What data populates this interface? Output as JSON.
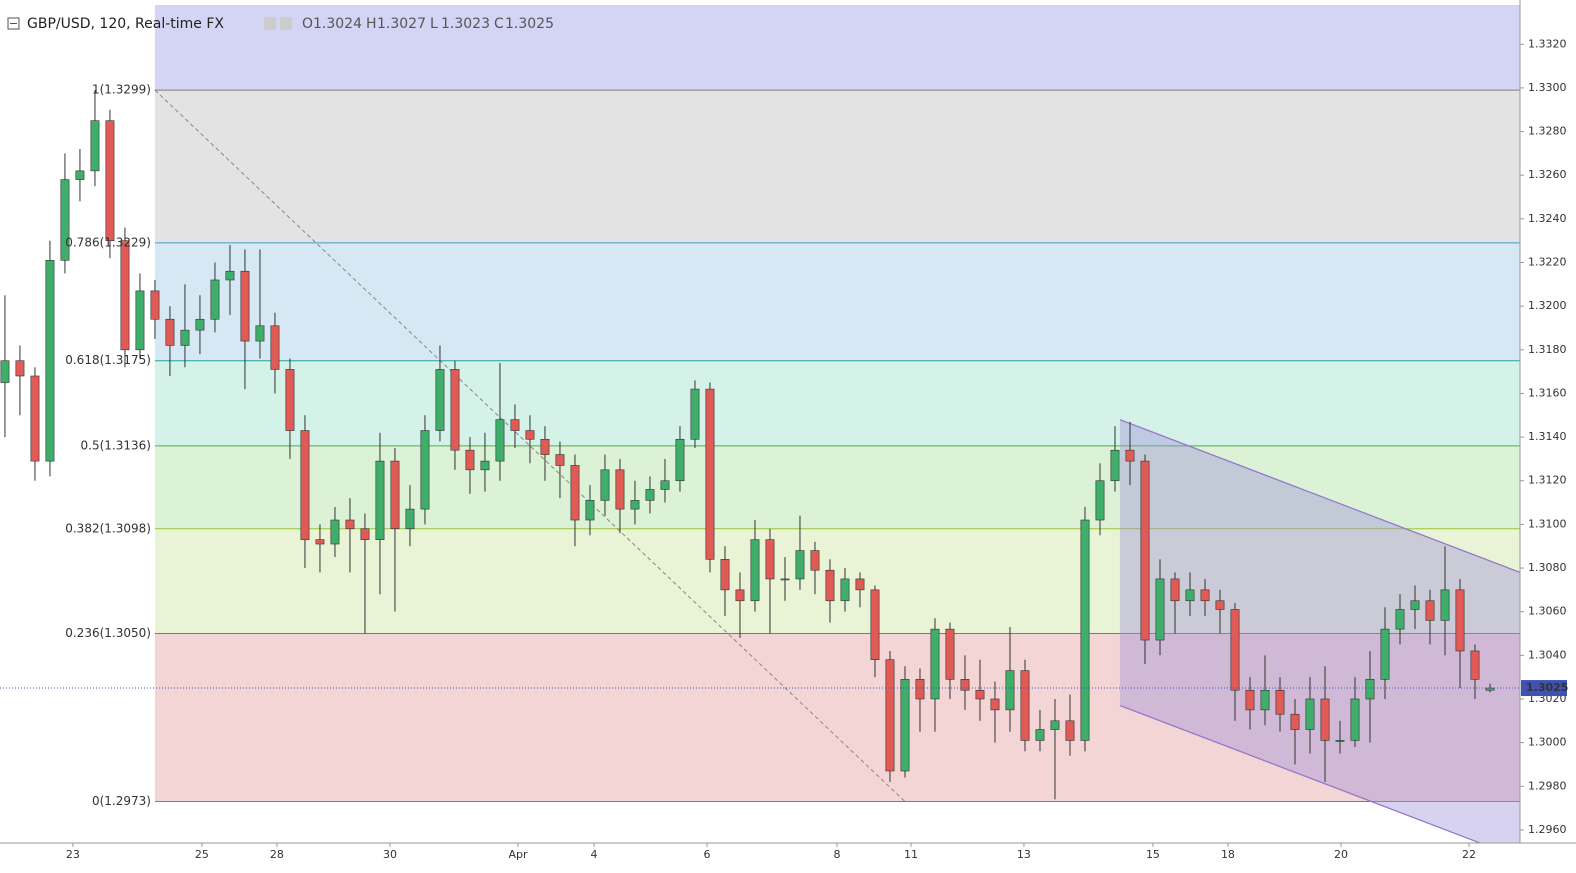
{
  "chart_data": {
    "type": "candlestick",
    "symbol": "GBP/USD, 120, Real-time FX",
    "ohlc_labels": [
      "O",
      "H",
      "L",
      "C"
    ],
    "x": [
      0,
      1,
      2,
      3,
      4,
      5,
      6,
      7,
      8,
      9,
      10,
      11,
      12,
      13,
      14,
      15,
      16,
      17,
      18,
      19,
      20,
      21,
      22,
      23,
      24,
      25,
      26,
      27,
      28,
      29,
      30,
      31,
      32,
      33,
      34,
      35,
      36,
      37,
      38,
      39,
      40,
      41,
      42,
      43,
      44,
      45,
      46,
      47,
      48,
      49,
      50,
      51,
      52,
      53,
      54,
      55,
      56,
      57,
      58,
      59,
      60,
      61,
      62,
      63,
      64,
      65,
      66,
      67,
      68,
      69,
      70,
      71,
      72,
      73,
      74,
      75,
      76,
      77,
      78,
      79,
      80,
      81,
      82,
      83,
      84,
      85,
      86,
      87,
      88,
      89,
      90,
      91,
      92,
      93,
      94,
      95,
      96,
      97,
      98,
      99
    ],
    "open": [
      1.3165,
      1.3175,
      1.3168,
      1.3129,
      1.3221,
      1.3258,
      1.3262,
      1.3285,
      1.323,
      1.318,
      1.3207,
      1.3194,
      1.3182,
      1.3189,
      1.3194,
      1.3212,
      1.3216,
      1.3184,
      1.3191,
      1.3171,
      1.3143,
      1.3093,
      1.3091,
      1.3102,
      1.3098,
      1.3093,
      1.3129,
      1.3098,
      1.3107,
      1.3143,
      1.3171,
      1.3134,
      1.3125,
      1.3129,
      1.3148,
      1.3143,
      1.3139,
      1.3132,
      1.3127,
      1.3102,
      1.3111,
      1.3125,
      1.3107,
      1.3111,
      1.3116,
      1.312,
      1.3139,
      1.3162,
      1.3084,
      1.307,
      1.3065,
      1.3093,
      1.3075,
      1.3075,
      1.3088,
      1.3079,
      1.3065,
      1.3075,
      1.307,
      1.3038,
      1.2987,
      1.3029,
      1.302,
      1.3052,
      1.3029,
      1.3024,
      1.302,
      1.3015,
      1.3033,
      1.3001,
      1.3006,
      1.301,
      1.3001,
      1.3102,
      1.312,
      1.3134,
      1.3129,
      1.3047,
      1.3075,
      1.3065,
      1.307,
      1.3065,
      1.3061,
      1.3024,
      1.3015,
      1.3024,
      1.3013,
      1.3006,
      1.302,
      1.3001,
      1.3001,
      1.302,
      1.3029,
      1.3052,
      1.3061,
      1.3065,
      1.3056,
      1.307,
      1.3042,
      1.3024
    ],
    "high": [
      1.3205,
      1.3182,
      1.3172,
      1.323,
      1.327,
      1.3272,
      1.3299,
      1.329,
      1.3236,
      1.3215,
      1.3212,
      1.32,
      1.321,
      1.3205,
      1.322,
      1.3228,
      1.3226,
      1.3226,
      1.3197,
      1.3176,
      1.315,
      1.31,
      1.3108,
      1.3112,
      1.3105,
      1.3142,
      1.3135,
      1.3118,
      1.315,
      1.3182,
      1.3175,
      1.314,
      1.3142,
      1.3174,
      1.3155,
      1.315,
      1.3145,
      1.3138,
      1.3132,
      1.3118,
      1.3132,
      1.313,
      1.312,
      1.3122,
      1.313,
      1.3145,
      1.3166,
      1.3165,
      1.309,
      1.3078,
      1.3102,
      1.3098,
      1.3085,
      1.3104,
      1.3092,
      1.3084,
      1.308,
      1.3078,
      1.3072,
      1.3042,
      1.3035,
      1.3034,
      1.3057,
      1.3055,
      1.304,
      1.3038,
      1.3028,
      1.3053,
      1.3038,
      1.3015,
      1.302,
      1.3022,
      1.3108,
      1.3128,
      1.3145,
      1.3147,
      1.3132,
      1.3084,
      1.3078,
      1.3078,
      1.3075,
      1.307,
      1.3064,
      1.303,
      1.304,
      1.303,
      1.302,
      1.303,
      1.3035,
      1.301,
      1.303,
      1.3042,
      1.3062,
      1.3068,
      1.3072,
      1.307,
      1.309,
      1.3075,
      1.3045,
      1.3027
    ],
    "low": [
      1.314,
      1.315,
      1.312,
      1.3122,
      1.3215,
      1.3248,
      1.3255,
      1.3222,
      1.3172,
      1.3176,
      1.3185,
      1.3168,
      1.3172,
      1.3178,
      1.3188,
      1.3196,
      1.3162,
      1.3176,
      1.316,
      1.313,
      1.308,
      1.3078,
      1.3085,
      1.3078,
      1.305,
      1.3068,
      1.306,
      1.309,
      1.31,
      1.3138,
      1.3125,
      1.3114,
      1.3115,
      1.312,
      1.3135,
      1.3128,
      1.312,
      1.3112,
      1.309,
      1.3095,
      1.3104,
      1.3096,
      1.31,
      1.3105,
      1.311,
      1.3115,
      1.3135,
      1.3078,
      1.3058,
      1.3048,
      1.306,
      1.305,
      1.3065,
      1.307,
      1.3068,
      1.3055,
      1.306,
      1.3062,
      1.303,
      1.2982,
      1.2984,
      1.3005,
      1.3005,
      1.302,
      1.3015,
      1.301,
      1.3,
      1.3005,
      1.2996,
      1.2996,
      1.2974,
      1.2994,
      1.2996,
      1.3095,
      1.3115,
      1.3118,
      1.3036,
      1.304,
      1.305,
      1.3058,
      1.3058,
      1.305,
      1.301,
      1.3006,
      1.3008,
      1.3005,
      1.299,
      1.2995,
      1.2982,
      1.2995,
      1.2998,
      1.3,
      1.302,
      1.3045,
      1.3052,
      1.3045,
      1.304,
      1.3025,
      1.302,
      1.3023
    ],
    "close": [
      1.3175,
      1.3168,
      1.3129,
      1.3221,
      1.3258,
      1.3262,
      1.3285,
      1.323,
      1.318,
      1.3207,
      1.3194,
      1.3182,
      1.3189,
      1.3194,
      1.3212,
      1.3216,
      1.3184,
      1.3191,
      1.3171,
      1.3143,
      1.3093,
      1.3091,
      1.3102,
      1.3098,
      1.3093,
      1.3129,
      1.3098,
      1.3107,
      1.3143,
      1.3171,
      1.3134,
      1.3125,
      1.3129,
      1.3148,
      1.3143,
      1.3139,
      1.3132,
      1.3127,
      1.3102,
      1.3111,
      1.3125,
      1.3107,
      1.3111,
      1.3116,
      1.312,
      1.3139,
      1.3162,
      1.3084,
      1.307,
      1.3065,
      1.3093,
      1.3075,
      1.3075,
      1.3088,
      1.3079,
      1.3065,
      1.3075,
      1.307,
      1.3038,
      1.2987,
      1.3029,
      1.302,
      1.3052,
      1.3029,
      1.3024,
      1.302,
      1.3015,
      1.3033,
      1.3001,
      1.3006,
      1.301,
      1.3001,
      1.3102,
      1.312,
      1.3134,
      1.3129,
      1.3047,
      1.3075,
      1.3065,
      1.307,
      1.3065,
      1.3061,
      1.3024,
      1.3015,
      1.3024,
      1.3013,
      1.3006,
      1.302,
      1.3001,
      1.3001,
      1.302,
      1.3029,
      1.3052,
      1.3061,
      1.3065,
      1.3056,
      1.307,
      1.3042,
      1.3029,
      1.3025
    ],
    "up_color": "#3fae6a",
    "down_color": "#e05a56",
    "wick_color": "#333333",
    "price_line_color": "#3f51b5",
    "xlim": [
      -0.33,
      101
    ],
    "ylim": [
      1.2954,
      1.3338
    ],
    "xticks": [
      {
        "value": 4.53,
        "label": "23"
      },
      {
        "value": 13.13,
        "label": "25"
      },
      {
        "value": 18.13,
        "label": "28"
      },
      {
        "value": 25.67,
        "label": "30"
      },
      {
        "value": 34.2,
        "label": "Apr"
      },
      {
        "value": 39.27,
        "label": "4"
      },
      {
        "value": 46.8,
        "label": "6"
      },
      {
        "value": 55.47,
        "label": "8"
      },
      {
        "value": 60.4,
        "label": "11"
      },
      {
        "value": 67.93,
        "label": "13"
      },
      {
        "value": 76.53,
        "label": "15"
      },
      {
        "value": 81.53,
        "label": "18"
      },
      {
        "value": 89.07,
        "label": "20"
      },
      {
        "value": 97.6,
        "label": "22"
      }
    ],
    "yticks": [
      {
        "value": 1.296,
        "label": "1.2960"
      },
      {
        "value": 1.298,
        "label": "1.2980"
      },
      {
        "value": 1.3,
        "label": "1.3000"
      },
      {
        "value": 1.302,
        "label": "1.3020"
      },
      {
        "value": 1.304,
        "label": "1.3040"
      },
      {
        "value": 1.306,
        "label": "1.3060"
      },
      {
        "value": 1.308,
        "label": "1.3080"
      },
      {
        "value": 1.31,
        "label": "1.3100"
      },
      {
        "value": 1.312,
        "label": "1.3120"
      },
      {
        "value": 1.314,
        "label": "1.3140"
      },
      {
        "value": 1.316,
        "label": "1.3160"
      },
      {
        "value": 1.318,
        "label": "1.3180"
      },
      {
        "value": 1.32,
        "label": "1.3200"
      },
      {
        "value": 1.322,
        "label": "1.3220"
      },
      {
        "value": 1.324,
        "label": "1.3240"
      },
      {
        "value": 1.326,
        "label": "1.3260"
      },
      {
        "value": 1.328,
        "label": "1.3280"
      },
      {
        "value": 1.33,
        "label": "1.3300"
      },
      {
        "value": 1.332,
        "label": "1.3320"
      }
    ],
    "grid": false,
    "fib_extension_fill": "#d4d4f4",
    "fib_levels": [
      {
        "label": "1(1.3299)",
        "price": 1.3299,
        "line_color": "#7f7f7f",
        "fill": "#e3e3e3"
      },
      {
        "label": "0.786(1.3229)",
        "price": 1.3229,
        "line_color": "#3a9fd0",
        "fill": "#d5e8f4"
      },
      {
        "label": "0.618(1.3175)",
        "price": 1.3175,
        "line_color": "#26a69a",
        "fill": "#d5f2e8"
      },
      {
        "label": "0.5(1.3136)",
        "price": 1.3136,
        "line_color": "#4caf50",
        "fill": "#dbf2d6"
      },
      {
        "label": "0.382(1.3098)",
        "price": 1.3098,
        "line_color": "#9bc43a",
        "fill": "#e9f3d5"
      },
      {
        "label": "0.236(1.3050)",
        "price": 1.305,
        "line_color": "#e0504f",
        "fill": "#f4d5d5"
      },
      {
        "label": "0(1.2973)",
        "price": 1.2973,
        "line_color": "#7f7f7f"
      }
    ],
    "trend_line": {
      "x": [
        10,
        60
      ],
      "y": [
        1.3299,
        1.2973
      ],
      "color": "#888888"
    },
    "channel": {
      "x": [
        74.33,
        101
      ],
      "upper": [
        1.3148,
        1.3078
      ],
      "lower": [
        1.3017,
        1.2947
      ],
      "color": "#9575cd",
      "fill": "#9b8fd6"
    }
  }
}
